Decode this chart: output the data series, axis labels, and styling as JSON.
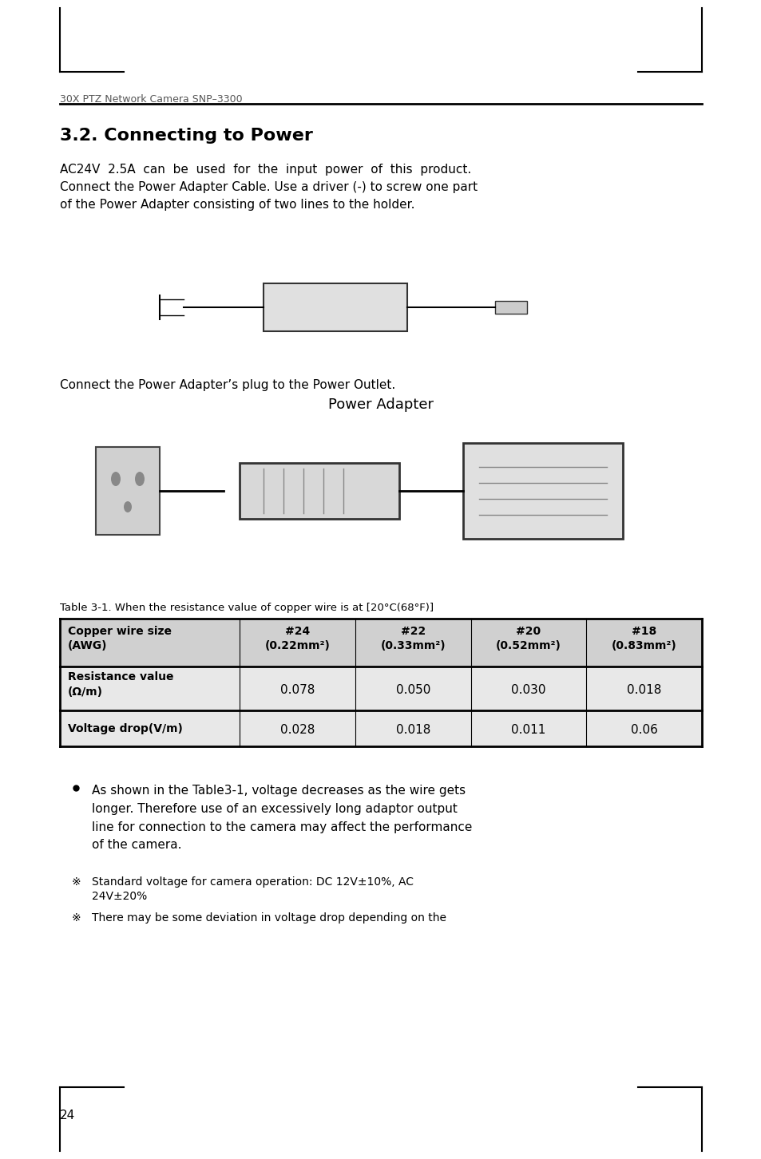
{
  "page_number": "24",
  "header_text": "30X PTZ Network Camera SNP–3300",
  "section_title": "3.2. Connecting to Power",
  "body_text_1": "AC24V  2.5A  can  be  used  for  the  input  power  of  this  product.\nConnect the Power Adapter Cable. Use a driver (-) to screw one part\nof the Power Adapter consisting of two lines to the holder.",
  "caption_power_adapter": "Connect the Power Adapter’s plug to the Power Outlet.",
  "power_adapter_label": "Power Adapter",
  "table_caption": "Table 3-1. When the resistance value of copper wire is at [20°C(68°F)]",
  "table_headers": [
    "Copper wire size\n(AWG)",
    "#24\n(0.22mm²)",
    "#22\n(0.33mm²)",
    "#20\n(0.52mm²)",
    "#18\n(0.83mm²)"
  ],
  "table_row1_label": "Resistance value\n(Ω/m)",
  "table_row1_values": [
    "0.078",
    "0.050",
    "0.030",
    "0.018"
  ],
  "table_row2_label": "Voltage drop(V/m)",
  "table_row2_values": [
    "0.028",
    "0.018",
    "0.011",
    "0.06"
  ],
  "bullet_text": "As shown in the Table3-1, voltage decreases as the wire gets\nlonger. Therefore use of an excessively long adaptor output\nline for connection to the camera may affect the performance\nof the camera.",
  "note1": "Standard voltage for camera operation: DC 12V±10%, AC\n24V±20%",
  "note2": "There may be some deviation in voltage drop depending on the",
  "bg_color": "#ffffff",
  "text_color": "#000000",
  "header_color": "#555555",
  "table_header_bg": "#d0d0d0",
  "table_row_bg": "#e8e8e8",
  "table_alt_bg": "#ffffff"
}
